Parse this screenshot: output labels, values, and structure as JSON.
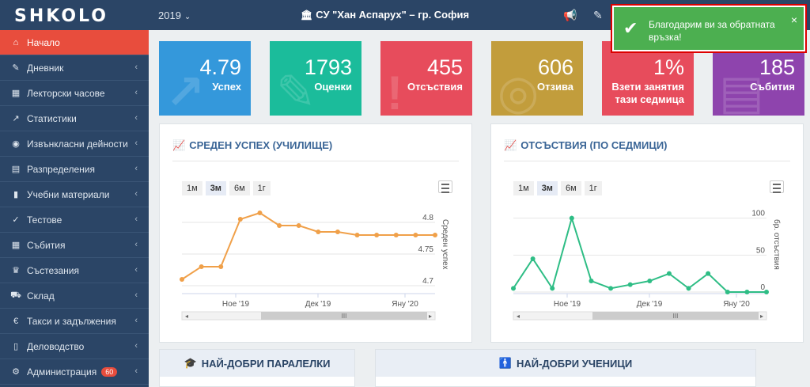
{
  "header": {
    "logo": "SHKOLO",
    "year": "2019",
    "year_chevron": "⌄",
    "school": "СУ \"Хан Аспарух\" – гр. София",
    "icons": [
      "megaphone-icon",
      "edit-icon"
    ]
  },
  "sidebar": {
    "items": [
      {
        "label": "Начало",
        "icon": "⌂",
        "active": true
      },
      {
        "label": "Дневник",
        "icon": "✎"
      },
      {
        "label": "Лекторски часове",
        "icon": "▦"
      },
      {
        "label": "Статистики",
        "icon": "↗"
      },
      {
        "label": "Извънкласни дейности",
        "icon": "◉"
      },
      {
        "label": "Разпределения",
        "icon": "▤"
      },
      {
        "label": "Учебни материали",
        "icon": "▮"
      },
      {
        "label": "Тестове",
        "icon": "✓"
      },
      {
        "label": "Събития",
        "icon": "▦"
      },
      {
        "label": "Състезания",
        "icon": "♛"
      },
      {
        "label": "Склад",
        "icon": "⛟"
      },
      {
        "label": "Такси и задължения",
        "icon": "€"
      },
      {
        "label": "Деловодство",
        "icon": "▯"
      },
      {
        "label": "Администрация",
        "icon": "⚙",
        "badge": "60"
      }
    ]
  },
  "tiles": [
    {
      "value": "4.79",
      "label": "Успех",
      "color": "#3498db"
    },
    {
      "value": "1793",
      "label": "Оценки",
      "color": "#1bbc9b"
    },
    {
      "value": "455",
      "label": "Отсъствия",
      "color": "#e74c5c"
    },
    {
      "value": "606",
      "label": "Отзива",
      "color": "#c29d3c"
    },
    {
      "value": "1%",
      "label": "Взети занятия тази седмица",
      "color": "#e74c5c"
    },
    {
      "value": "185",
      "label": "Събития",
      "color": "#8e44ad"
    }
  ],
  "zoom": [
    "1м",
    "3м",
    "6м",
    "1г"
  ],
  "charts": [
    {
      "title": "СРЕДЕН УСПЕХ (УЧИЛИЩЕ)",
      "ylabel": "Среден успех",
      "color": "#f0a049"
    },
    {
      "title": "ОТСЪСТВИЯ (ПО СЕДМИЦИ)",
      "ylabel": "бр. отсъствия",
      "color": "#2ebd85"
    }
  ],
  "chart_data": [
    {
      "type": "line",
      "title": "",
      "ylabel": "Среден успех",
      "x_ticks": [
        "Ное '19",
        "Дек '19",
        "Яну '20"
      ],
      "yticks": [
        4.7,
        4.75,
        4.8
      ],
      "ylim": [
        4.69,
        4.83
      ],
      "values": [
        4.71,
        4.73,
        4.73,
        4.805,
        4.815,
        4.795,
        4.795,
        4.785,
        4.785,
        4.78,
        4.78,
        4.78,
        4.78,
        4.78
      ],
      "series": [
        {
          "name": "",
          "values": [
            4.71,
            4.73,
            4.73,
            4.805,
            4.815,
            4.795,
            4.795,
            4.785,
            4.785,
            4.78,
            4.78,
            4.78,
            4.78,
            4.78
          ]
        }
      ]
    },
    {
      "type": "line",
      "title": "",
      "ylabel": "бр. отсъствия",
      "x_ticks": [
        "Ное '19",
        "Дек '19",
        "Яну '20"
      ],
      "yticks": [
        0,
        50,
        100
      ],
      "ylim": [
        0,
        120
      ],
      "values": [
        5,
        45,
        5,
        100,
        15,
        5,
        10,
        15,
        25,
        5,
        25,
        0,
        0,
        0
      ],
      "series": [
        {
          "name": "",
          "values": [
            5,
            45,
            5,
            100,
            15,
            5,
            10,
            15,
            25,
            5,
            25,
            0,
            0,
            0
          ]
        }
      ]
    }
  ],
  "bottom": {
    "classes_title": "НАЙ-ДОБРИ ПАРАЛЕЛКИ",
    "students_title": "НАЙ-ДОБРИ УЧЕНИЦИ"
  },
  "toast": {
    "message": "Благодарим ви за обратната връзка!",
    "check": "✔",
    "close": "×",
    "color": "#4caf50"
  }
}
